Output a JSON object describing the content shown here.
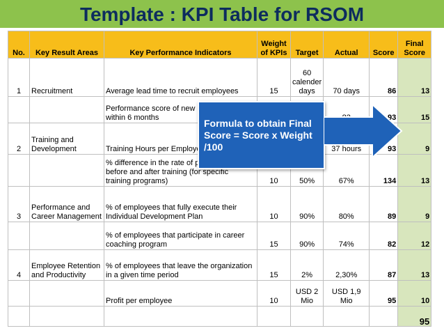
{
  "title": "Template : KPI Table for RSOM",
  "headers": {
    "no": "No.",
    "kra": "Key Result Areas",
    "kpi": "Key Performance Indicators",
    "weight": "Weight of KPIs",
    "target": "Target",
    "actual": "Actual",
    "score": "Score",
    "final": "Final Score"
  },
  "rows": [
    {
      "no": "1",
      "kra": "Recruitment",
      "kpi": "Average lead time to recruit employees",
      "weight": "15",
      "target": "60 calender days",
      "actual": "70 days",
      "score": "86",
      "final": "13"
    },
    {
      "no": "",
      "kra": "",
      "kpi": "Performance score of new employees within 6 months",
      "weight": "",
      "target": "",
      "actual": "82",
      "score": "93",
      "final": "15"
    },
    {
      "no": "2",
      "kra": "Training and Development",
      "kpi": "Training Hours per Employee",
      "weight": "",
      "target": "",
      "actual": "37 hours",
      "score": "93",
      "final": "9"
    },
    {
      "no": "",
      "kra": "",
      "kpi": "% difference in the rate of performance before and after training (for specific training programs)",
      "weight": "10",
      "target": "50%",
      "actual": "67%",
      "score": "134",
      "final": "13"
    },
    {
      "no": "3",
      "kra": "Performance and Career Management",
      "kpi": "% of employees that fully execute their Individual Development Plan",
      "weight": "10",
      "target": "90%",
      "actual": "80%",
      "score": "89",
      "final": "9"
    },
    {
      "no": "",
      "kra": "",
      "kpi": "% of employees that participate in career coaching program",
      "weight": "15",
      "target": "90%",
      "actual": "74%",
      "score": "82",
      "final": "12"
    },
    {
      "no": "4",
      "kra": "Employee Retention and Productivity",
      "kpi": "% of employees that leave the organization in a given time period",
      "weight": "15",
      "target": "2%",
      "actual": "2,30%",
      "score": "87",
      "final": "13"
    },
    {
      "no": "",
      "kra": "",
      "kpi": "Profit per employee",
      "weight": "10",
      "target": "USD 2 Mio",
      "actual": "USD 1,9 Mio",
      "score": "95",
      "final": "10"
    }
  ],
  "total": "95",
  "callout": {
    "text": "Formula to obtain Final Score = Score x Weight /100"
  },
  "colors": {
    "band": "#8dc24c",
    "title": "#0d2c5e",
    "header": "#f7bd1a",
    "final_col": "#d8e6bd",
    "callout": "#1f62b8"
  }
}
